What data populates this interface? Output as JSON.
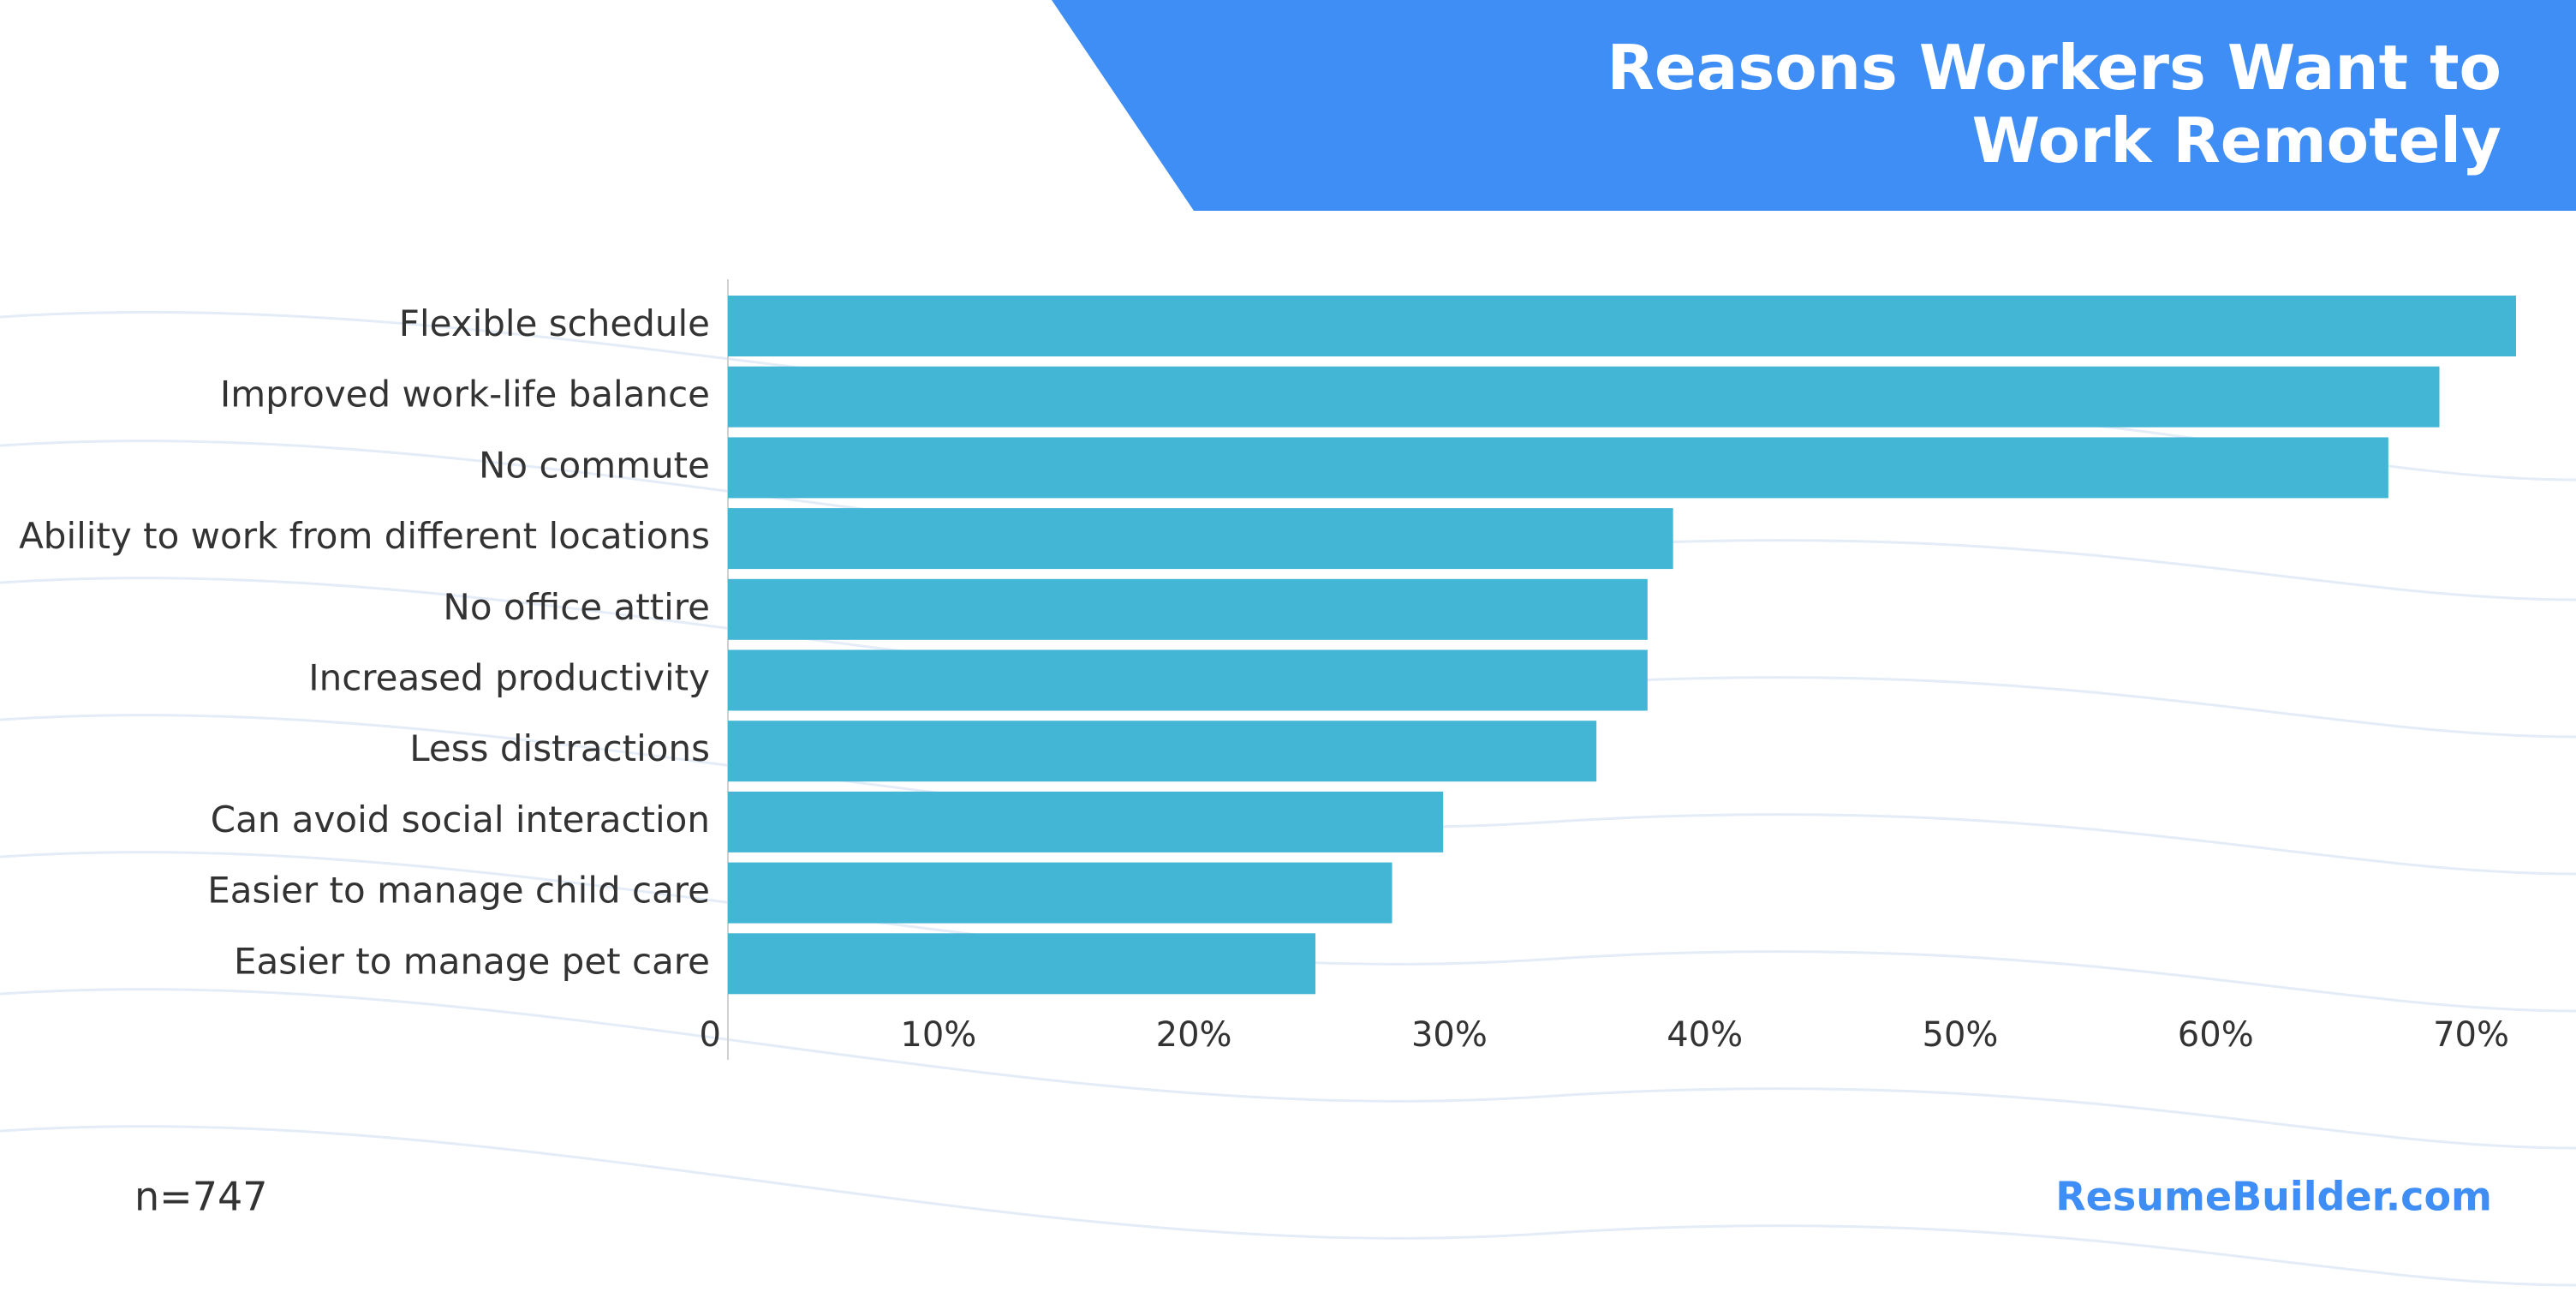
{
  "chart_data": {
    "type": "bar",
    "orientation": "horizontal",
    "title": "Reasons Workers Want to Work Remotely",
    "categories": [
      "Flexible schedule",
      "Improved work-life balance",
      "No commute",
      "Ability to work from different locations",
      "No office attire",
      "Increased productivity",
      "Less distractions",
      "Can avoid social interaction",
      "Easier to manage child care",
      "Easier to manage pet care"
    ],
    "values": [
      70,
      67,
      65,
      37,
      36,
      36,
      34,
      28,
      26,
      23
    ],
    "color": "#43b6d6",
    "xlim": [
      0,
      70
    ],
    "xticks": [
      0,
      {
        "value": 10,
        "label": "10%"
      },
      {
        "value": 20,
        "label": "20%"
      },
      {
        "value": 30,
        "label": "30%"
      },
      {
        "value": 40,
        "label": "40%"
      },
      {
        "value": 50,
        "label": "50%"
      },
      {
        "value": 60,
        "label": "60%"
      },
      {
        "value": 70,
        "label": "70%"
      }
    ],
    "note": "n=747",
    "source": "ResumeBuilder.com"
  }
}
